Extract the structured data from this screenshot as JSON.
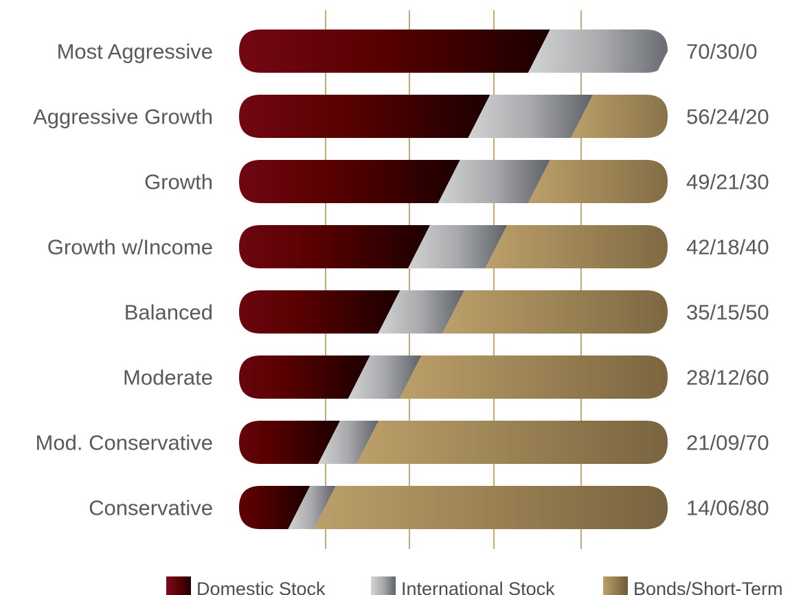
{
  "chart_data": {
    "type": "bar",
    "stacked": true,
    "orientation": "horizontal",
    "categories": [
      "Most Aggressive",
      "Aggressive Growth",
      "Growth",
      "Growth w/Income",
      "Balanced",
      "Moderate",
      "Mod. Conservative",
      "Conservative"
    ],
    "value_labels": [
      "70/30/0",
      "56/24/20",
      "49/21/30",
      "42/18/40",
      "35/15/50",
      "28/12/60",
      "21/09/70",
      "14/06/80"
    ],
    "series": [
      {
        "name": "Domestic Stock",
        "values": [
          70,
          56,
          49,
          42,
          35,
          28,
          21,
          14
        ],
        "color": "#7a0a1a"
      },
      {
        "name": "International Stock",
        "values": [
          30,
          24,
          21,
          18,
          15,
          12,
          9,
          6
        ],
        "color": "#a7a9ac"
      },
      {
        "name": "Bonds/Short-Term",
        "values": [
          0,
          20,
          30,
          40,
          50,
          60,
          70,
          80
        ],
        "color": "#b49a66"
      }
    ],
    "xlim": [
      0,
      100
    ],
    "grid": true,
    "legend_position": "bottom"
  }
}
